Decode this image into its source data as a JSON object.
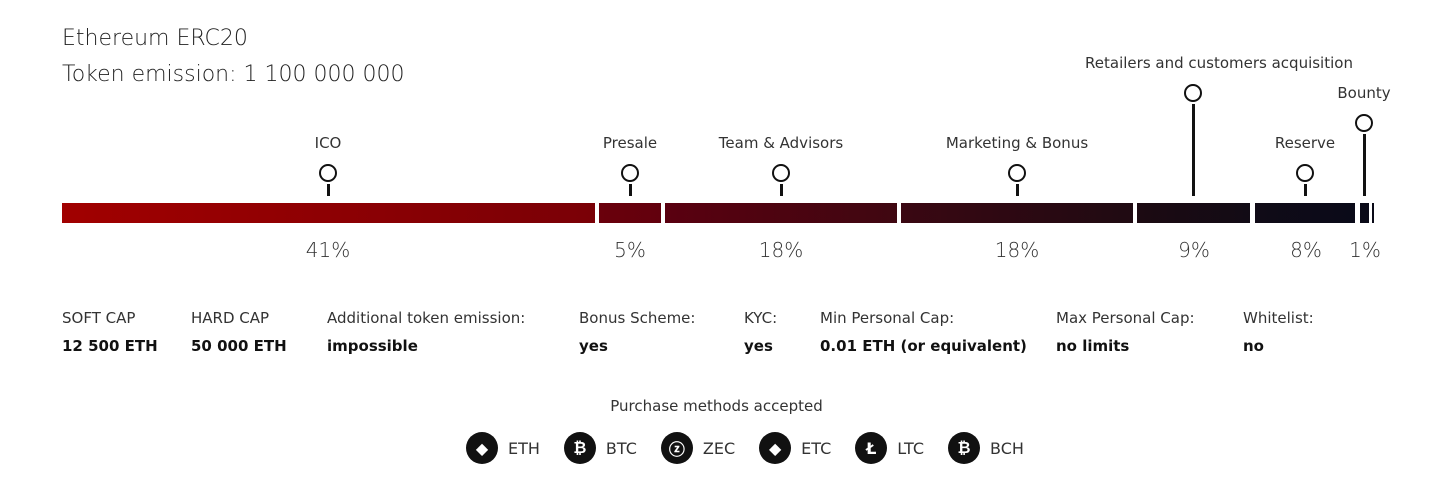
{
  "title": "Ethereum ERC20",
  "emission": "Token emission: 1 100 000 000",
  "segments": [
    {
      "label": "ICO",
      "percent": "41%",
      "color_start": "#a10000",
      "color_end": "#7a0006"
    },
    {
      "label": "Presale",
      "percent": "5%",
      "color_start": "#6a000c",
      "color_end": "#62000d"
    },
    {
      "label": "Team & Advisors",
      "percent": "18%",
      "color_start": "#5a0010",
      "color_end": "#3f0711"
    },
    {
      "label": "Marketing & Bonus",
      "percent": "18%",
      "color_start": "#3a0712",
      "color_end": "#1f0a12"
    },
    {
      "label": "Retailers and customers acquisition",
      "percent": "9%",
      "color_start": "#1c0a12",
      "color_end": "#120b15"
    },
    {
      "label": "Reserve",
      "percent": "8%",
      "color_start": "#100b17",
      "color_end": "#0a0a18"
    },
    {
      "label": "Bounty",
      "percent": "1%",
      "color_start": "#0a0a18",
      "color_end": "#0a0a18"
    }
  ],
  "info": [
    {
      "label": "SOFT CAP",
      "value": "12 500 ETH"
    },
    {
      "label": "HARD CAP",
      "value": "50 000 ETH"
    },
    {
      "label": "Additional token emission:",
      "value": "impossible"
    },
    {
      "label": "Bonus Scheme:",
      "value": "yes"
    },
    {
      "label": "KYC:",
      "value": "yes"
    },
    {
      "label": "Min Personal Cap:",
      "value": "0.01 ETH (or equivalent)"
    },
    {
      "label": "Max Personal Cap:",
      "value": "no limits"
    },
    {
      "label": "Whitelist:",
      "value": "no"
    }
  ],
  "purchase": {
    "title": "Purchase methods accepted",
    "methods": [
      {
        "label": "ETH",
        "icon": "ethereum-icon",
        "glyph": "◆"
      },
      {
        "label": "BTC",
        "icon": "bitcoin-icon",
        "glyph": "₿"
      },
      {
        "label": "ZEC",
        "icon": "zcash-icon",
        "glyph": "ⓩ"
      },
      {
        "label": "ETC",
        "icon": "ethereum-classic-icon",
        "glyph": "◆"
      },
      {
        "label": "LTC",
        "icon": "litecoin-icon",
        "glyph": "Ł"
      },
      {
        "label": "BCH",
        "icon": "bitcoin-cash-icon",
        "glyph": "₿"
      }
    ]
  }
}
